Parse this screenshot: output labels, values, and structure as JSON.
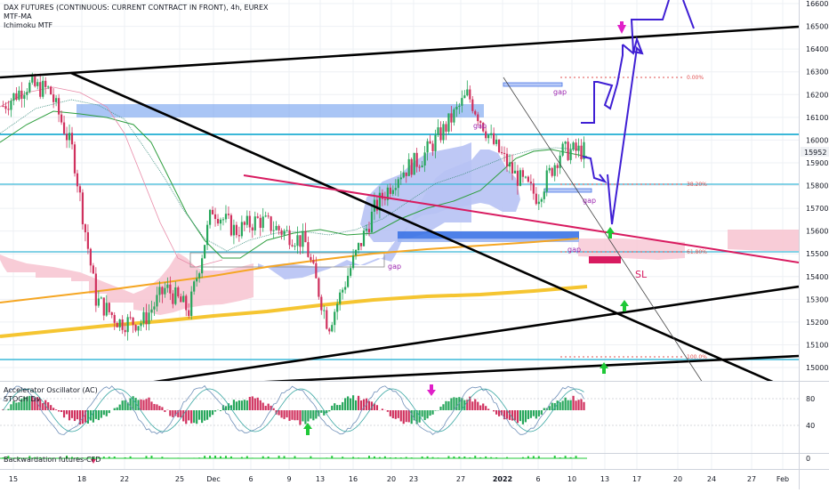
{
  "title": "DAX FUTURES (CONTINUOUS: CURRENT CONTRACT IN FRONT), 4h, EUREX",
  "indicators": [
    "MTF-MA",
    "Ichimoku MTF"
  ],
  "sub_panels": {
    "ac_label": "Accelerator Oscillator (AC)",
    "stoch_label": "STOCH Dv",
    "backwardation_label": "Backwardation futures-CFD",
    "osc_ticks": [
      "80",
      "40"
    ],
    "bw_tick": "0"
  },
  "last_price_tag": "15952",
  "colors": {
    "up_candle": "#26a65b",
    "down_candle": "#d0315e",
    "trendline": "#000000",
    "cyan": "#3bb8d8",
    "blue_zone": "#4a78e8",
    "pink_line": "#e0306a",
    "orange_ma": "#f5a623",
    "gold_ma": "#f5c531",
    "projection": "#4b2ad6",
    "fib": "#e05050",
    "cloud_pink": "#f8c8d4",
    "cloud_blue": "#b9c4f5"
  },
  "annotations": {
    "gap_labels": [
      "gap",
      "gap",
      "gap",
      "gap",
      "gap"
    ],
    "fib_labels": [
      "0.00%",
      "38.20%",
      "61.80%",
      "100.0%"
    ],
    "sl_label": "SL"
  },
  "chart_data": {
    "type": "candlestick",
    "title": "DAX FUTURES (CONTINUOUS: CURRENT CONTRACT IN FRONT), 4h, EUREX",
    "price_axis": {
      "ylim": [
        14900,
        16650
      ],
      "ticks": [
        15000,
        15100,
        15200,
        15300,
        15400,
        15500,
        15600,
        15700,
        15800,
        15900,
        16000,
        16100,
        16200,
        16300,
        16400,
        16500,
        16600
      ]
    },
    "date_axis": {
      "ticks": [
        "15",
        "18",
        "22",
        "25",
        "Dec",
        "6",
        "9",
        "13",
        "16",
        "20",
        "23",
        "27",
        "2022",
        "6",
        "10",
        "13",
        "17",
        "20",
        "24",
        "27",
        "Feb"
      ]
    },
    "close_path": [
      {
        "date": "Nov 15",
        "close": 16150
      },
      {
        "date": "Nov 18",
        "close": 16240
      },
      {
        "date": "Nov 22",
        "close": 16220
      },
      {
        "date": "Nov 24",
        "close": 15950
      },
      {
        "date": "Nov 26",
        "close": 15300
      },
      {
        "date": "Nov 29",
        "close": 15200
      },
      {
        "date": "Dec 1",
        "close": 15200
      },
      {
        "date": "Dec 3",
        "close": 15350
      },
      {
        "date": "Dec 6",
        "close": 15250
      },
      {
        "date": "Dec 8",
        "close": 15700
      },
      {
        "date": "Dec 10",
        "close": 15600
      },
      {
        "date": "Dec 13",
        "close": 15650
      },
      {
        "date": "Dec 15",
        "close": 15600
      },
      {
        "date": "Dec 17",
        "close": 15550
      },
      {
        "date": "Dec 20",
        "close": 15180
      },
      {
        "date": "Dec 22",
        "close": 15450
      },
      {
        "date": "Dec 24",
        "close": 15700
      },
      {
        "date": "Dec 27",
        "close": 15850
      },
      {
        "date": "Dec 30",
        "close": 15920
      },
      {
        "date": "Jan 3",
        "close": 16050
      },
      {
        "date": "Jan 5",
        "close": 16200
      },
      {
        "date": "Jan 7",
        "close": 16000
      },
      {
        "date": "Jan 10",
        "close": 15850
      },
      {
        "date": "Jan 11",
        "close": 15750
      },
      {
        "date": "Jan 12",
        "close": 15950
      },
      {
        "date": "Jan 14",
        "close": 15952
      }
    ],
    "horizontal_levels": [
      16040,
      15810,
      15525,
      15030
    ],
    "fibonacci": [
      {
        "label": "0.00%",
        "price": 16250
      },
      {
        "label": "38.20%",
        "price": 15810
      },
      {
        "label": "61.80%",
        "price": 15525
      },
      {
        "label": "100.0%",
        "price": 15050
      }
    ],
    "price_tag": 15952
  }
}
